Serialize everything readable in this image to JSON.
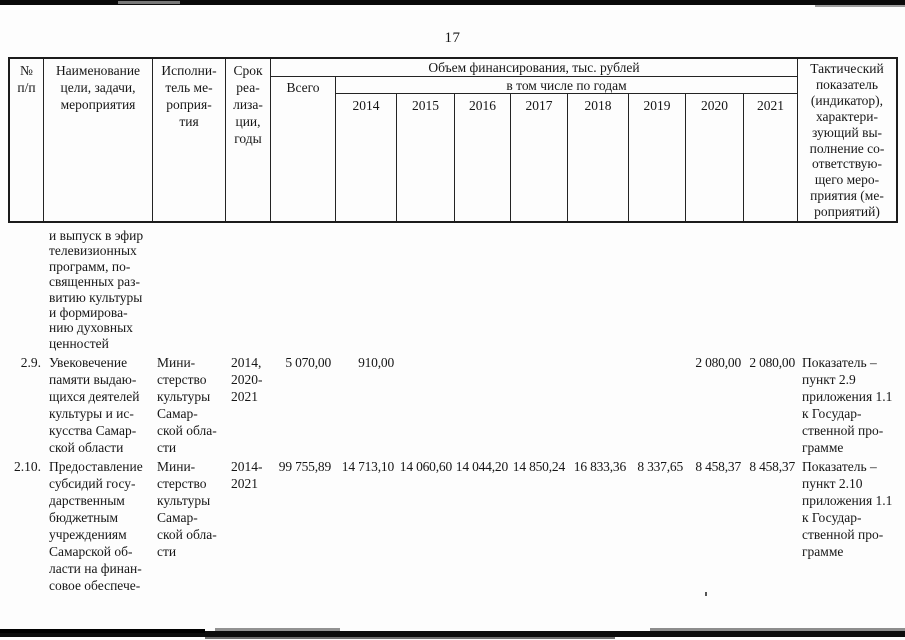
{
  "page_number": "17",
  "table": {
    "header": {
      "num": "№\nп/п",
      "name": "Наименование\nцели, задачи,\nмероприятия",
      "executor": "Исполни-\nтель ме-\nроприя-\nтия",
      "term": "Срок\nреа-\nлиза-\nции,\nгоды",
      "financing": "Объем финансирования, тыс. рублей",
      "total": "Всего",
      "by_years": "в том числе по годам",
      "years": [
        "2014",
        "2015",
        "2016",
        "2017",
        "2018",
        "2019",
        "2020",
        "2021"
      ],
      "indicator": "Тактический\nпоказатель\n(индикатор),\nхарактери-\nзующий вы-\nполнение со-\nответствую-\nщего меро-\nприятия (ме-\nроприятий)"
    },
    "rows": [
      {
        "num": "",
        "name": "и выпуск в эфир\nтелевизионных\nпрограмм, по-\nсвященных раз-\nвитию культуры\nи формирова-\nнию духовных\nценностей",
        "executor": "",
        "term": "",
        "total": "",
        "values": [
          "",
          "",
          "",
          "",
          "",
          "",
          "",
          ""
        ],
        "indicator": ""
      },
      {
        "num": "2.9.",
        "name": "Увековечение\nпамяти выдаю-\nщихся деятелей\nкультуры и ис-\nкусства Самар-\nской области",
        "executor": "Мини-\nстерство\nкультуры\nСамар-\nской обла-\nсти",
        "term": "2014,\n2020-\n2021",
        "total": "5 070,00",
        "values": [
          "910,00",
          "",
          "",
          "",
          "",
          "",
          "2 080,00",
          "2 080,00"
        ],
        "indicator": "Показатель –\nпункт 2.9\nприложения 1.1\nк Государ-\nственной про-\nграмме"
      },
      {
        "num": "2.10.",
        "name": "Предоставление\nсубсидий госу-\nдарственным\nбюджетным\nучреждениям\nСамарской об-\nласти на финан-\nсовое обеспече-",
        "executor": "Мини-\nстерство\nкультуры\nСамар-\nской обла-\nсти",
        "term": "2014-\n2021",
        "total": "99 755,89",
        "values": [
          "14 713,10",
          "14 060,60",
          "14 044,20",
          "14 850,24",
          "16 833,36",
          "8 337,65",
          "8 458,37",
          "8 458,37"
        ],
        "indicator": "Показатель –\nпункт 2.10\nприложения 1.1\nк Государ-\nственной про-\nграмме"
      }
    ]
  }
}
